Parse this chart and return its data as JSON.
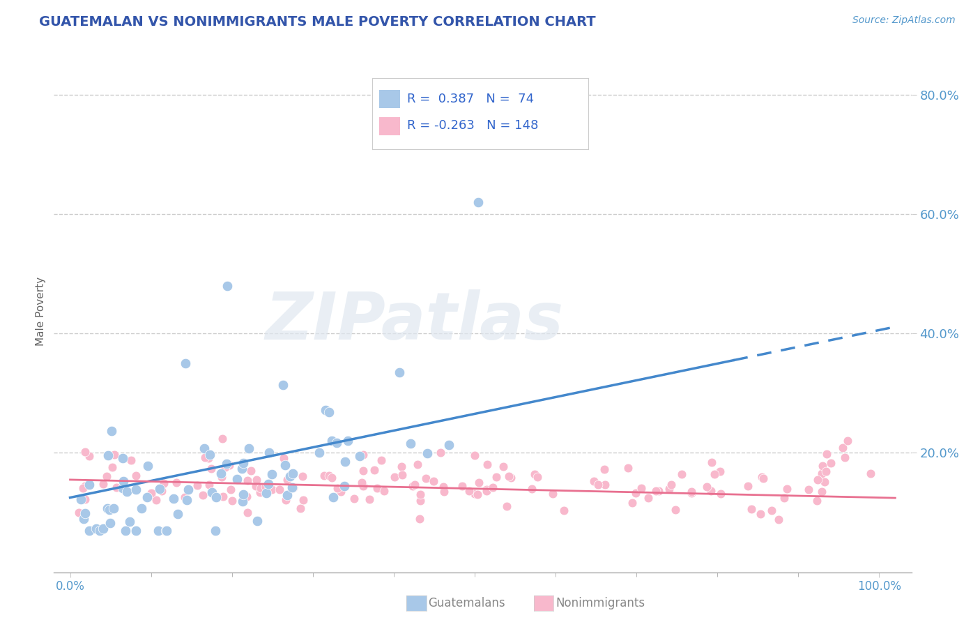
{
  "title": "GUATEMALAN VS NONIMMIGRANTS MALE POVERTY CORRELATION CHART",
  "source_text": "Source: ZipAtlas.com",
  "ylabel": "Male Poverty",
  "ytick_values": [
    0.2,
    0.4,
    0.6,
    0.8
  ],
  "guatemalan_color": "#a8c8e8",
  "nonimmigrant_color": "#f8b8cc",
  "guatemalan_line_color": "#4488cc",
  "nonimmigrant_line_color": "#e87090",
  "R_guatemalan": 0.387,
  "N_guatemalan": 74,
  "R_nonimmigrant": -0.263,
  "N_nonimmigrant": 148,
  "title_color": "#3355aa",
  "grid_color": "#cccccc",
  "background_color": "#ffffff",
  "watermark_text": "ZIPatlas",
  "legend_text_color": "#3366cc",
  "source_color": "#5599cc",
  "bottom_legend_color": "#888888",
  "tick_label_color": "#5599cc",
  "ylabel_color": "#666666"
}
